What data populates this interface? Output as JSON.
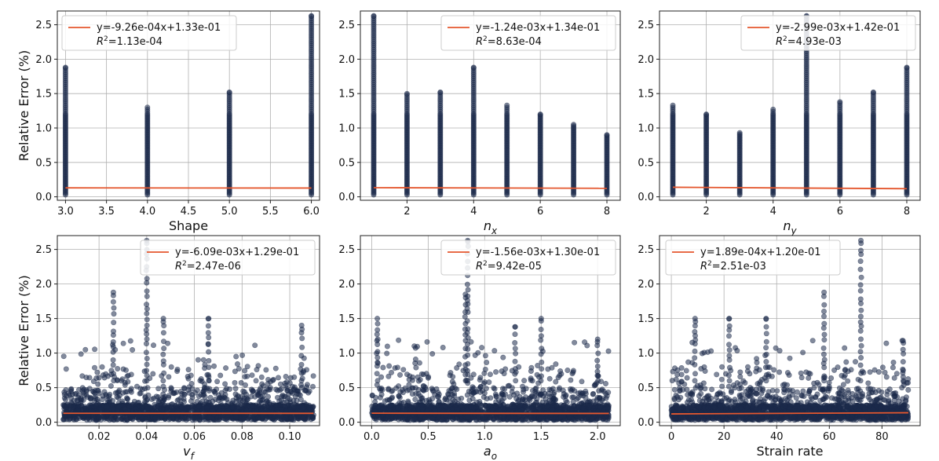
{
  "figure": {
    "type": "scatter-grid",
    "rows": 2,
    "cols": 3
  },
  "colors": {
    "points": "#1b2a4a",
    "fit": "#e4572e",
    "grid": "#b0b0b0"
  },
  "chart_data": [
    {
      "type": "scatter",
      "xlabel": "Shape",
      "ylabel": "Relative Error (%)",
      "xlim": [
        2.9,
        6.1
      ],
      "ylim": [
        -0.05,
        2.7
      ],
      "xticks": [
        3.0,
        3.5,
        4.0,
        4.5,
        5.0,
        5.5,
        6.0
      ],
      "xtick_labels": [
        "3.0",
        "3.5",
        "4.0",
        "4.5",
        "5.0",
        "5.5",
        "6.0"
      ],
      "yticks": [
        0.0,
        0.5,
        1.0,
        1.5,
        2.0,
        2.5
      ],
      "ytick_labels": [
        "0.0",
        "0.5",
        "1.0",
        "1.5",
        "2.0",
        "2.5"
      ],
      "distribution": "discrete",
      "levels": [
        3,
        4,
        5,
        6
      ],
      "level_max": [
        1.88,
        1.3,
        1.52,
        2.63
      ],
      "fit": {
        "slope": -0.000926,
        "intercept": 0.133,
        "x_range": [
          3.0,
          6.0
        ]
      },
      "legend": {
        "equation": "y=-9.26e-04x+1.33e-01",
        "r2_prefix": "R",
        "r2_value": "=1.13e-04",
        "position": "top-center"
      }
    },
    {
      "type": "scatter",
      "xlabel": "n",
      "xlabel_sub": "x",
      "ylabel": "",
      "xlim": [
        0.6,
        8.4
      ],
      "ylim": [
        -0.05,
        2.7
      ],
      "xticks": [
        2,
        4,
        6,
        8
      ],
      "xtick_labels": [
        "2",
        "4",
        "6",
        "8"
      ],
      "yticks": [
        0.0,
        0.5,
        1.0,
        1.5,
        2.0,
        2.5
      ],
      "ytick_labels": [
        "0.0",
        "0.5",
        "1.0",
        "1.5",
        "2.0",
        "2.5"
      ],
      "distribution": "discrete",
      "levels": [
        1,
        2,
        3,
        4,
        5,
        6,
        7,
        8
      ],
      "level_max": [
        2.63,
        1.5,
        1.52,
        1.88,
        1.33,
        1.2,
        1.05,
        0.9
      ],
      "fit": {
        "slope": -0.00124,
        "intercept": 0.134,
        "x_range": [
          1,
          8
        ]
      },
      "legend": {
        "equation": "y=-1.24e-03x+1.34e-01",
        "r2_prefix": "R",
        "r2_value": "=8.63e-04",
        "position": "top-right"
      }
    },
    {
      "type": "scatter",
      "xlabel": "n",
      "xlabel_sub": "y",
      "ylabel": "",
      "xlim": [
        0.6,
        8.4
      ],
      "ylim": [
        -0.05,
        2.7
      ],
      "xticks": [
        2,
        4,
        6,
        8
      ],
      "xtick_labels": [
        "2",
        "4",
        "6",
        "8"
      ],
      "yticks": [
        0.0,
        0.5,
        1.0,
        1.5,
        2.0,
        2.5
      ],
      "ytick_labels": [
        "0.0",
        "0.5",
        "1.0",
        "1.5",
        "2.0",
        "2.5"
      ],
      "distribution": "discrete",
      "levels": [
        1,
        2,
        3,
        4,
        5,
        6,
        7,
        8
      ],
      "level_max": [
        1.33,
        1.2,
        0.93,
        1.27,
        2.63,
        1.38,
        1.52,
        1.88
      ],
      "fit": {
        "slope": -0.00299,
        "intercept": 0.142,
        "x_range": [
          1,
          8
        ]
      },
      "legend": {
        "equation": "y=-2.99e-03x+1.42e-01",
        "r2_prefix": "R",
        "r2_value": "=4.93e-03",
        "position": "top-right"
      }
    },
    {
      "type": "scatter",
      "xlabel": "v",
      "xlabel_sub": "f",
      "ylabel": "Relative Error (%)",
      "xlim": [
        0.0025,
        0.1125
      ],
      "ylim": [
        -0.05,
        2.7
      ],
      "xticks": [
        0.02,
        0.04,
        0.06,
        0.08,
        0.1
      ],
      "xtick_labels": [
        "0.02",
        "0.04",
        "0.06",
        "0.08",
        "0.10"
      ],
      "yticks": [
        0.0,
        0.5,
        1.0,
        1.5,
        2.0,
        2.5
      ],
      "ytick_labels": [
        "0.0",
        "0.5",
        "1.0",
        "1.5",
        "2.0",
        "2.5"
      ],
      "distribution": "continuous",
      "x_range": [
        0.005,
        0.11
      ],
      "n_points": 1400,
      "peaks": [
        [
          0.04,
          2.63
        ],
        [
          0.026,
          1.88
        ],
        [
          0.047,
          1.5
        ],
        [
          0.066,
          1.5
        ],
        [
          0.105,
          1.4
        ]
      ],
      "fit": {
        "slope": -0.00609,
        "intercept": 0.129,
        "x_range": [
          0.005,
          0.11
        ]
      },
      "legend": {
        "equation": "y=-6.09e-03x+1.29e-01",
        "r2_prefix": "R",
        "r2_value": "=2.47e-06",
        "position": "top-right"
      }
    },
    {
      "type": "scatter",
      "xlabel": "a",
      "xlabel_sub": "o",
      "ylabel": "",
      "xlim": [
        -0.1,
        2.2
      ],
      "ylim": [
        -0.05,
        2.7
      ],
      "xticks": [
        0.0,
        0.5,
        1.0,
        1.5,
        2.0
      ],
      "xtick_labels": [
        "0.0",
        "0.5",
        "1.0",
        "1.5",
        "2.0"
      ],
      "yticks": [
        0.0,
        0.5,
        1.0,
        1.5,
        2.0,
        2.5
      ],
      "ytick_labels": [
        "0.0",
        "0.5",
        "1.0",
        "1.5",
        "2.0",
        "2.5"
      ],
      "distribution": "continuous",
      "x_range": [
        0.0,
        2.1
      ],
      "n_points": 1400,
      "peaks": [
        [
          0.85,
          2.63
        ],
        [
          0.83,
          1.85
        ],
        [
          0.05,
          1.5
        ],
        [
          1.5,
          1.5
        ],
        [
          1.27,
          1.38
        ],
        [
          2.0,
          1.2
        ]
      ],
      "fit": {
        "slope": -0.00156,
        "intercept": 0.13,
        "x_range": [
          0.0,
          2.1
        ]
      },
      "legend": {
        "equation": "y=-1.56e-03x+1.30e-01",
        "r2_prefix": "R",
        "r2_value": "=9.42e-05",
        "position": "top-right"
      }
    },
    {
      "type": "scatter",
      "xlabel": "Strain rate",
      "ylabel": "",
      "xlim": [
        -4.5,
        94.5
      ],
      "ylim": [
        -0.05,
        2.7
      ],
      "xticks": [
        0,
        20,
        40,
        60,
        80
      ],
      "xtick_labels": [
        "0",
        "20",
        "40",
        "60",
        "80"
      ],
      "yticks": [
        0.0,
        0.5,
        1.0,
        1.5,
        2.0,
        2.5
      ],
      "ytick_labels": [
        "0.0",
        "0.5",
        "1.0",
        "1.5",
        "2.0",
        "2.5"
      ],
      "distribution": "continuous",
      "x_range": [
        0,
        90
      ],
      "n_points": 1400,
      "peaks": [
        [
          72,
          2.63
        ],
        [
          58,
          1.88
        ],
        [
          22,
          1.5
        ],
        [
          9,
          1.5
        ],
        [
          36,
          1.5
        ],
        [
          88,
          1.18
        ]
      ],
      "fit": {
        "slope": 0.000189,
        "intercept": 0.12,
        "x_range": [
          0,
          90
        ]
      },
      "legend": {
        "equation": "y=1.89e-04x+1.20e-01",
        "r2_prefix": "R",
        "r2_value": "=2.51e-03",
        "position": "top-left"
      }
    }
  ]
}
